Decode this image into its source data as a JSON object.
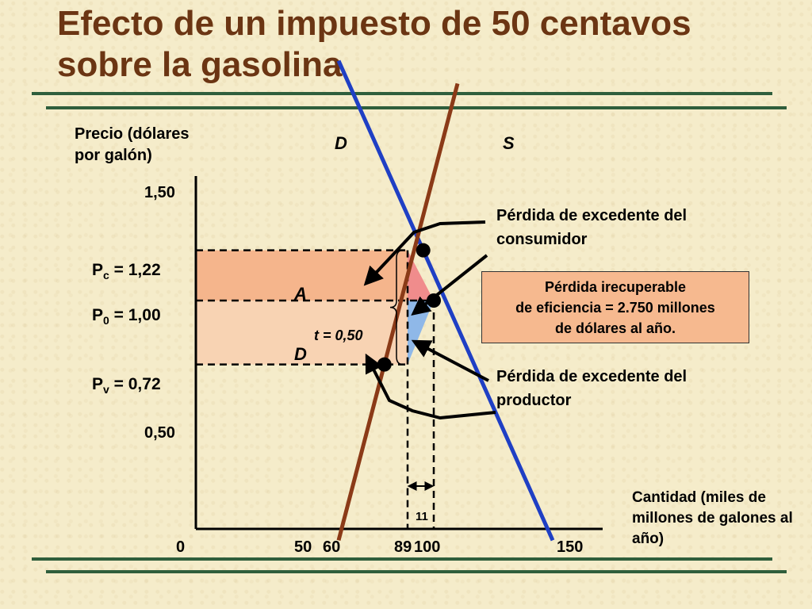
{
  "title": "Efecto de un impuesto de 50 centavos sobre la gasolina",
  "chart_data": {
    "type": "line",
    "title": "Efecto de un impuesto de 50 centavos sobre la gasolina",
    "ylabel": "Precio (dólares por galón)",
    "xlabel": "Cantidad (miles de millones de galones al año)",
    "xlim": [
      0,
      150
    ],
    "ylim": [
      0,
      1.5
    ],
    "x_ticks": [
      "0",
      "50",
      "60",
      "89",
      "100",
      "150"
    ],
    "y_ticks": [
      "0,50",
      "1,50"
    ],
    "series": [
      {
        "name": "D",
        "color": "#1f3fc4",
        "points": [
          [
            60,
            2.05
          ],
          [
            150,
            -0.05
          ]
        ]
      },
      {
        "name": "S",
        "color": "#8b3a17",
        "points": [
          [
            60,
            -0.05
          ],
          [
            110,
            1.95
          ]
        ]
      }
    ],
    "price_levels": [
      {
        "prefix": "P",
        "sub": "c",
        "rest": " = 1,22",
        "value": 1.22
      },
      {
        "prefix": "P",
        "sub": "0",
        "rest": " = 1,00",
        "value": 1.0
      },
      {
        "prefix": "P",
        "sub": "v",
        "rest": " = 0,72",
        "value": 0.72
      }
    ],
    "quantities": {
      "with_tax": 89,
      "equilibrium": 100
    },
    "areas": [
      {
        "label": "A",
        "color": "#f5b58c"
      },
      {
        "label": "D",
        "color": "#f8d3b3"
      }
    ],
    "tax_label": "t = 0,50",
    "quantity_change_label": "11",
    "annotations": {
      "consumer_loss": "Pérdida de excedente del consumidor",
      "producer_loss": "Pérdida de excedente del productor",
      "deadweight_loss": [
        "Pérdida irecuperable",
        "de eficiencia = 2.750 millones",
        "de dólares al año."
      ]
    },
    "colors": {
      "demand": "#1f3fc4",
      "supply": "#8b3a17",
      "consumer_triangle": "#f08c8c",
      "producer_triangle": "#8fb8e8",
      "deadweight_box": "#f6b98f"
    }
  }
}
